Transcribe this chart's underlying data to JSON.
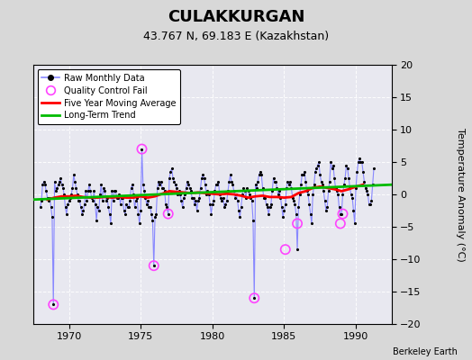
{
  "title": "CULAKKURGAN",
  "subtitle": "43.767 N, 69.183 E (Kazakhstan)",
  "ylabel": "Temperature Anomaly (°C)",
  "credit": "Berkeley Earth",
  "xlim": [
    1967.5,
    1992.5
  ],
  "ylim": [
    -20,
    20
  ],
  "yticks": [
    -20,
    -15,
    -10,
    -5,
    0,
    5,
    10,
    15,
    20
  ],
  "xticks": [
    1970,
    1975,
    1980,
    1985,
    1990
  ],
  "bg_color": "#d8d8d8",
  "plot_bg_color": "#e8e8f0",
  "raw_line_color": "#8888ff",
  "raw_dot_color": "#000000",
  "qc_color": "#ff44ff",
  "moving_avg_color": "#ff0000",
  "trend_color": "#00bb00",
  "raw_monthly_years": [
    1968.0,
    1968.083,
    1968.167,
    1968.25,
    1968.333,
    1968.417,
    1968.5,
    1968.583,
    1968.667,
    1968.75,
    1968.833,
    1968.917,
    1969.0,
    1969.083,
    1969.167,
    1969.25,
    1969.333,
    1969.417,
    1969.5,
    1969.583,
    1969.667,
    1969.75,
    1969.833,
    1969.917,
    1970.0,
    1970.083,
    1970.167,
    1970.25,
    1970.333,
    1970.417,
    1970.5,
    1970.583,
    1970.667,
    1970.75,
    1970.833,
    1970.917,
    1971.0,
    1971.083,
    1971.167,
    1971.25,
    1971.333,
    1971.417,
    1971.5,
    1971.583,
    1971.667,
    1971.75,
    1971.833,
    1971.917,
    1972.0,
    1972.083,
    1972.167,
    1972.25,
    1972.333,
    1972.417,
    1972.5,
    1972.583,
    1972.667,
    1972.75,
    1972.833,
    1972.917,
    1973.0,
    1973.083,
    1973.167,
    1973.25,
    1973.333,
    1973.417,
    1973.5,
    1973.583,
    1973.667,
    1973.75,
    1973.833,
    1973.917,
    1974.0,
    1974.083,
    1974.167,
    1974.25,
    1974.333,
    1974.417,
    1974.5,
    1974.583,
    1974.667,
    1974.75,
    1974.833,
    1974.917,
    1975.0,
    1975.083,
    1975.167,
    1975.25,
    1975.333,
    1975.417,
    1975.5,
    1975.583,
    1975.667,
    1975.75,
    1975.833,
    1975.917,
    1976.0,
    1976.083,
    1976.167,
    1976.25,
    1976.333,
    1976.417,
    1976.5,
    1976.583,
    1976.667,
    1976.75,
    1976.833,
    1976.917,
    1977.0,
    1977.083,
    1977.167,
    1977.25,
    1977.333,
    1977.417,
    1977.5,
    1977.583,
    1977.667,
    1977.75,
    1977.833,
    1977.917,
    1978.0,
    1978.083,
    1978.167,
    1978.25,
    1978.333,
    1978.417,
    1978.5,
    1978.583,
    1978.667,
    1978.75,
    1978.833,
    1978.917,
    1979.0,
    1979.083,
    1979.167,
    1979.25,
    1979.333,
    1979.417,
    1979.5,
    1979.583,
    1979.667,
    1979.75,
    1979.833,
    1979.917,
    1980.0,
    1980.083,
    1980.167,
    1980.25,
    1980.333,
    1980.417,
    1980.5,
    1980.583,
    1980.667,
    1980.75,
    1980.833,
    1980.917,
    1981.0,
    1981.083,
    1981.167,
    1981.25,
    1981.333,
    1981.417,
    1981.5,
    1981.583,
    1981.667,
    1981.75,
    1981.833,
    1981.917,
    1982.0,
    1982.083,
    1982.167,
    1982.25,
    1982.333,
    1982.417,
    1982.5,
    1982.583,
    1982.667,
    1982.75,
    1982.833,
    1982.917,
    1983.0,
    1983.083,
    1983.167,
    1983.25,
    1983.333,
    1983.417,
    1983.5,
    1983.583,
    1983.667,
    1983.75,
    1983.833,
    1983.917,
    1984.0,
    1984.083,
    1984.167,
    1984.25,
    1984.333,
    1984.417,
    1984.5,
    1984.583,
    1984.667,
    1984.75,
    1984.833,
    1984.917,
    1985.0,
    1985.083,
    1985.167,
    1985.25,
    1985.333,
    1985.417,
    1985.5,
    1985.583,
    1985.667,
    1985.75,
    1985.833,
    1985.917,
    1986.0,
    1986.083,
    1986.167,
    1986.25,
    1986.333,
    1986.417,
    1986.5,
    1986.583,
    1986.667,
    1986.75,
    1986.833,
    1986.917,
    1987.0,
    1987.083,
    1987.167,
    1987.25,
    1987.333,
    1987.417,
    1987.5,
    1987.583,
    1987.667,
    1987.75,
    1987.833,
    1987.917,
    1988.0,
    1988.083,
    1988.167,
    1988.25,
    1988.333,
    1988.417,
    1988.5,
    1988.583,
    1988.667,
    1988.75,
    1988.833,
    1988.917,
    1989.0,
    1989.083,
    1989.167,
    1989.25,
    1989.333,
    1989.417,
    1989.5,
    1989.583,
    1989.667,
    1989.75,
    1989.833,
    1989.917,
    1990.0,
    1990.083,
    1990.167,
    1990.25,
    1990.333,
    1990.417,
    1990.5,
    1990.583,
    1990.667,
    1990.75,
    1990.833,
    1990.917,
    1991.0,
    1991.083,
    1991.167,
    1991.25
  ],
  "raw_monthly_values": [
    -2.0,
    -1.0,
    1.5,
    2.0,
    1.5,
    0.5,
    -0.5,
    -1.0,
    -0.5,
    -2.0,
    -3.5,
    -17.0,
    2.0,
    0.5,
    1.0,
    1.5,
    2.0,
    2.5,
    1.5,
    1.0,
    0.0,
    -2.0,
    -3.0,
    -1.5,
    -1.0,
    -0.5,
    0.0,
    1.0,
    3.0,
    2.0,
    1.0,
    0.0,
    -1.0,
    -1.0,
    -2.0,
    -3.0,
    -2.5,
    -1.5,
    0.5,
    -1.0,
    0.5,
    1.5,
    0.5,
    -0.5,
    -1.0,
    0.5,
    -1.5,
    -4.0,
    -2.0,
    -2.5,
    0.0,
    1.5,
    -1.0,
    1.0,
    0.5,
    -1.0,
    -0.5,
    -2.0,
    -3.0,
    -4.5,
    0.5,
    -1.0,
    0.5,
    0.5,
    -0.5,
    -0.5,
    0.0,
    -1.5,
    -0.5,
    -0.5,
    -2.5,
    -3.0,
    -1.5,
    -2.0,
    -2.0,
    -1.0,
    1.0,
    1.5,
    0.0,
    -2.0,
    -1.0,
    -0.5,
    -3.0,
    -4.5,
    -2.5,
    7.0,
    1.5,
    0.5,
    -0.5,
    -1.5,
    -1.0,
    -2.0,
    -2.0,
    -3.0,
    -4.0,
    -11.0,
    -3.5,
    -3.0,
    1.0,
    2.0,
    1.5,
    2.0,
    1.0,
    1.0,
    0.5,
    -1.5,
    -2.0,
    -3.0,
    2.5,
    3.5,
    4.0,
    2.5,
    2.0,
    1.5,
    1.0,
    0.0,
    0.5,
    0.0,
    -1.0,
    -2.0,
    -0.5,
    0.0,
    1.0,
    2.0,
    1.5,
    1.0,
    0.5,
    -0.5,
    -0.5,
    -1.5,
    -1.0,
    -2.5,
    -1.0,
    -0.5,
    1.0,
    2.5,
    3.0,
    2.5,
    1.5,
    0.0,
    0.5,
    0.0,
    -1.5,
    -3.0,
    -1.5,
    -1.0,
    0.5,
    1.5,
    1.5,
    2.0,
    0.0,
    -0.5,
    -1.0,
    -0.5,
    -2.0,
    -1.5,
    -1.0,
    0.5,
    2.0,
    3.0,
    2.0,
    1.5,
    0.5,
    -0.5,
    0.0,
    -1.0,
    -2.5,
    -3.5,
    -2.0,
    0.0,
    1.0,
    0.5,
    -0.5,
    1.0,
    0.5,
    0.0,
    -0.5,
    -1.0,
    -4.0,
    -16.0,
    1.5,
    1.0,
    2.0,
    3.0,
    3.5,
    3.0,
    1.0,
    -0.5,
    -0.5,
    -1.5,
    -2.0,
    -3.0,
    -2.0,
    -1.5,
    0.5,
    2.5,
    2.0,
    2.0,
    1.0,
    0.0,
    0.5,
    -0.5,
    -2.0,
    -3.5,
    -2.5,
    -1.5,
    1.0,
    2.0,
    1.5,
    2.0,
    1.0,
    -0.5,
    -1.0,
    -1.5,
    -3.0,
    -8.5,
    -2.0,
    0.0,
    1.5,
    3.0,
    3.0,
    3.5,
    2.0,
    0.5,
    0.0,
    -1.5,
    -3.0,
    -4.5,
    0.0,
    1.5,
    3.5,
    4.0,
    4.5,
    5.0,
    3.0,
    2.0,
    1.5,
    0.5,
    -1.0,
    -2.5,
    -2.0,
    0.5,
    2.0,
    5.0,
    4.0,
    4.5,
    2.5,
    1.0,
    0.5,
    0.0,
    -2.0,
    -3.0,
    -3.0,
    0.0,
    1.5,
    2.5,
    4.5,
    4.0,
    2.5,
    1.0,
    0.0,
    -0.5,
    -2.5,
    -4.5,
    1.0,
    3.5,
    5.0,
    5.5,
    5.0,
    5.0,
    3.5,
    2.0,
    1.0,
    0.5,
    0.0,
    -1.5,
    -1.5,
    -1.0,
    1.5,
    4.0
  ],
  "qc_years": [
    1968.917,
    1975.083,
    1975.917,
    1976.917,
    1982.917,
    1985.083,
    1985.917,
    1988.917,
    1989.083
  ],
  "qc_values": [
    -17.0,
    7.0,
    -11.0,
    -3.0,
    -16.0,
    -8.5,
    -4.5,
    -4.5,
    -3.0
  ],
  "moving_avg_years": [
    1968.5,
    1969.0,
    1969.5,
    1970.0,
    1970.5,
    1971.0,
    1971.5,
    1972.0,
    1972.5,
    1973.0,
    1973.5,
    1974.0,
    1974.5,
    1975.0,
    1975.5,
    1976.0,
    1976.5,
    1977.0,
    1977.5,
    1978.0,
    1978.5,
    1979.0,
    1979.5,
    1980.0,
    1980.5,
    1981.0,
    1981.5,
    1982.0,
    1982.5,
    1983.0,
    1983.5,
    1984.0,
    1984.5,
    1985.0,
    1985.5,
    1986.0,
    1986.5,
    1987.0,
    1987.5,
    1988.0,
    1988.5,
    1989.0,
    1989.5,
    1990.0,
    1990.5
  ],
  "moving_avg_values": [
    -0.8,
    -0.5,
    -0.3,
    -0.3,
    -0.2,
    -0.4,
    -0.5,
    -0.5,
    -0.4,
    -0.5,
    -0.4,
    -0.5,
    -0.5,
    -0.3,
    -0.5,
    -0.3,
    0.1,
    0.5,
    0.4,
    0.3,
    0.2,
    0.3,
    0.2,
    0.1,
    0.0,
    0.1,
    0.0,
    -0.2,
    -0.5,
    -0.3,
    -0.2,
    -0.4,
    -0.4,
    -0.5,
    -0.4,
    0.2,
    0.5,
    1.0,
    1.2,
    1.0,
    0.8,
    0.5,
    0.8,
    1.2,
    1.5
  ],
  "trend_x": [
    1967.5,
    1992.5
  ],
  "trend_y": [
    -0.8,
    1.5
  ]
}
